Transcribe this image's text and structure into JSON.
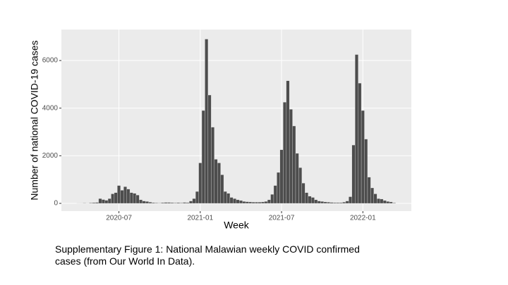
{
  "chart_data": {
    "type": "bar",
    "x_label": "Week",
    "y_label": "Number of national COVID-19 cases",
    "caption": "Supplementary Figure 1: National Malawian weekly COVID confirmed cases (from Our World In Data).",
    "color": "#4d4d4d",
    "x": [
      13,
      14,
      15,
      16,
      17,
      18,
      19,
      20,
      21,
      22,
      23,
      24,
      25,
      26,
      27,
      28,
      29,
      30,
      31,
      32,
      33,
      34,
      35,
      36,
      37,
      38,
      39,
      40,
      41,
      42,
      43,
      44,
      45,
      46,
      47,
      48,
      49,
      50,
      51,
      52,
      53,
      54,
      55,
      56,
      57,
      58,
      59,
      60,
      61,
      62,
      63,
      64,
      65,
      66,
      67,
      68,
      69,
      70,
      71,
      72,
      73,
      74,
      75,
      76,
      77,
      78,
      79,
      80,
      81,
      82,
      83,
      84,
      85,
      86,
      87,
      88,
      89,
      90,
      91,
      92,
      93,
      94,
      95,
      96,
      97,
      98,
      99,
      100,
      101,
      102,
      103,
      104,
      105,
      106,
      107,
      108,
      109,
      110,
      111,
      112,
      113,
      114
    ],
    "values": [
      5,
      10,
      15,
      10,
      20,
      30,
      40,
      200,
      160,
      130,
      200,
      400,
      450,
      750,
      550,
      700,
      600,
      450,
      420,
      350,
      150,
      100,
      80,
      50,
      30,
      20,
      15,
      30,
      40,
      40,
      30,
      20,
      30,
      20,
      40,
      30,
      100,
      200,
      500,
      1700,
      3900,
      6900,
      4550,
      3200,
      1850,
      1700,
      1200,
      500,
      420,
      250,
      200,
      150,
      120,
      80,
      70,
      60,
      50,
      50,
      50,
      60,
      80,
      150,
      380,
      750,
      1300,
      2250,
      4250,
      5150,
      3950,
      3250,
      2100,
      1500,
      850,
      450,
      300,
      250,
      150,
      100,
      80,
      60,
      50,
      40,
      30,
      30,
      30,
      50,
      100,
      280,
      2450,
      6250,
      5050,
      3900,
      2700,
      1100,
      650,
      400,
      200,
      180,
      120,
      80,
      60,
      20
    ],
    "xlim": [
      7.6,
      119.5
    ],
    "xticks": [
      {
        "value": 26,
        "label": "2020-07"
      },
      {
        "value": 52,
        "label": "2021-01"
      },
      {
        "value": 78,
        "label": "2021-07"
      },
      {
        "value": 104,
        "label": "2022-01"
      }
    ],
    "ylim": [
      -325,
      7300
    ],
    "yticks": [
      0,
      2000,
      4000,
      6000
    ],
    "grid": true
  }
}
